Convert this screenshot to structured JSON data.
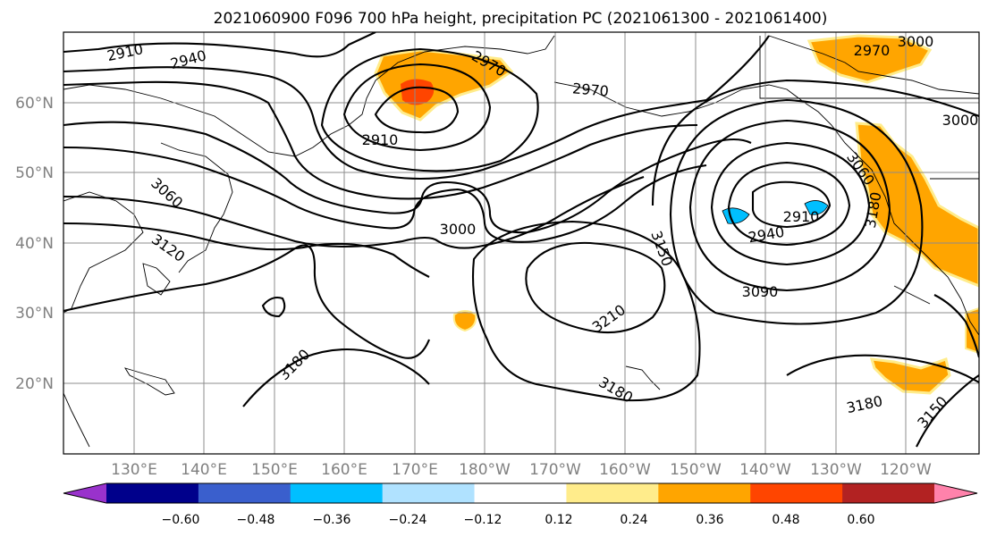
{
  "title": "2021060900 F096 700 hPa height, precipitation PC (2021061300 - 2021061400)",
  "map": {
    "lat_ticks": [
      "60°N",
      "50°N",
      "40°N",
      "30°N",
      "20°N"
    ],
    "lon_ticks": [
      "130°E",
      "140°E",
      "150°E",
      "160°E",
      "170°E",
      "180°W",
      "170°W",
      "160°W",
      "150°W",
      "140°W",
      "130°W",
      "120°W"
    ],
    "contour_labels": [
      "2910",
      "2940",
      "2970",
      "3000",
      "2970",
      "3000",
      "2910",
      "3060",
      "3120",
      "3000",
      "2970",
      "3060",
      "3180",
      "2910",
      "2940",
      "3150",
      "3090",
      "3210",
      "3180",
      "3180",
      "3150",
      "3180"
    ]
  },
  "colorbar": {
    "ticks": [
      "−0.60",
      "−0.48",
      "−0.36",
      "−0.24",
      "−0.12",
      "0.12",
      "0.24",
      "0.36",
      "0.48",
      "0.60"
    ],
    "colors": [
      "#9932cc",
      "#00008b",
      "#3a5fcd",
      "#00bfff",
      "#b0e2ff",
      "#ffffff",
      "#ffec8b",
      "#ffa500",
      "#ff4500",
      "#b22222",
      "#ff82ab"
    ]
  },
  "legend_colors": {
    "positive_light": "#ffec8b",
    "positive_mid": "#ffa500",
    "positive_high": "#ff4500",
    "negative": "#00bfff"
  }
}
